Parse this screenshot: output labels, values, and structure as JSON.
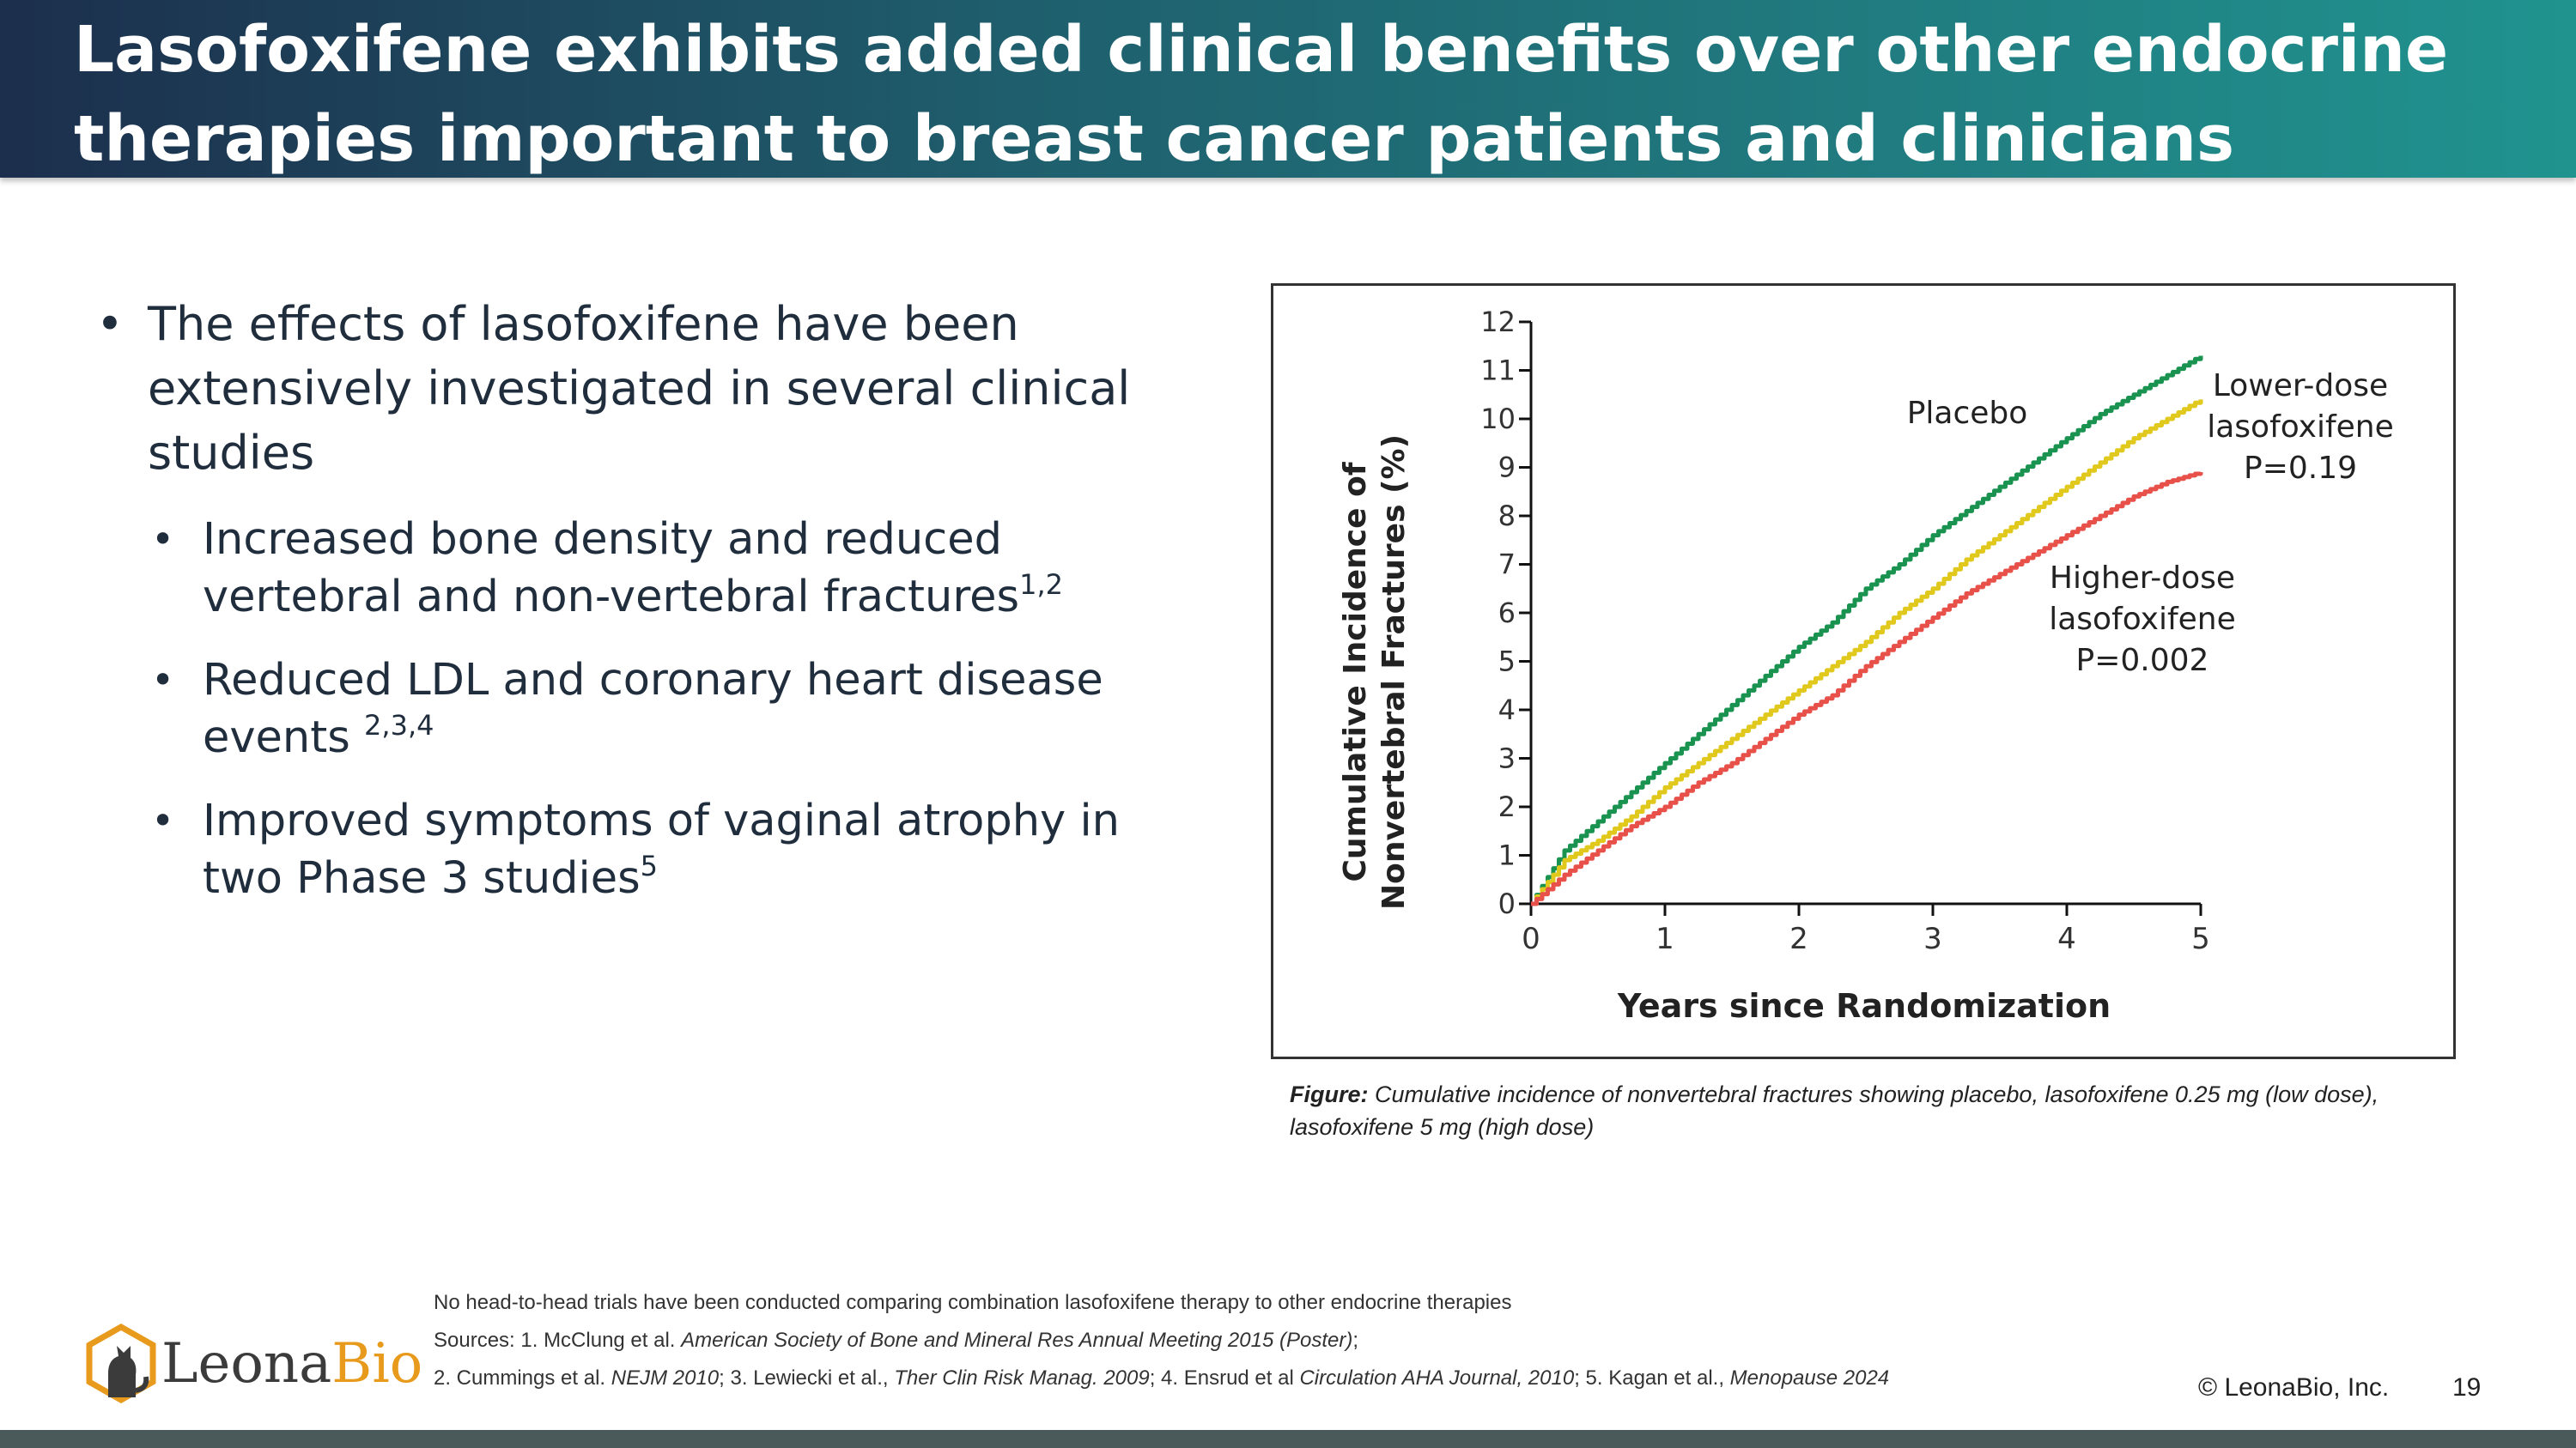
{
  "header": {
    "title": "Lasofoxifene exhibits added clinical benefits over other endocrine therapies important to breast cancer patients and clinicians"
  },
  "bullets": {
    "main": "The effects of lasofoxifene have been extensively investigated in several clinical studies",
    "sub": [
      {
        "text": "Increased bone density and reduced vertebral and non-vertebral fractures",
        "refs": "1,2"
      },
      {
        "text": "Reduced LDL and coronary heart disease events ",
        "refs": "2,3,4"
      },
      {
        "text": "Improved symptoms of vaginal atrophy in two Phase 3 studies",
        "refs": "5"
      }
    ]
  },
  "chart_data": {
    "type": "line",
    "title": "",
    "xlabel": "Years since Randomization",
    "ylabel_line1": "Cumulative Incidence of",
    "ylabel_line2": "Nonvertebral Fractures (%)",
    "xlim": [
      0,
      5
    ],
    "ylim": [
      0,
      12
    ],
    "xticks": [
      0,
      1,
      2,
      3,
      4,
      5
    ],
    "yticks": [
      0,
      1,
      2,
      3,
      4,
      5,
      6,
      7,
      8,
      9,
      10,
      11,
      12
    ],
    "x": [
      0,
      0.25,
      0.5,
      0.75,
      1,
      1.25,
      1.5,
      1.75,
      2,
      2.25,
      2.5,
      2.75,
      3,
      3.25,
      3.5,
      3.75,
      4,
      4.25,
      4.5,
      4.75,
      5
    ],
    "series": [
      {
        "name": "Placebo",
        "color": "#1a9350",
        "values": [
          0,
          1.1,
          1.7,
          2.3,
          2.9,
          3.5,
          4.1,
          4.7,
          5.3,
          5.8,
          6.5,
          7.0,
          7.6,
          8.1,
          8.6,
          9.1,
          9.6,
          10.1,
          10.5,
          10.9,
          11.3
        ]
      },
      {
        "name": "Lower-dose lasofoxifene",
        "color": "#e0c81c",
        "values": [
          0,
          0.9,
          1.3,
          1.8,
          2.4,
          2.9,
          3.4,
          3.9,
          4.4,
          4.9,
          5.4,
          6.0,
          6.5,
          7.1,
          7.6,
          8.1,
          8.6,
          9.1,
          9.6,
          10.0,
          10.4
        ]
      },
      {
        "name": "Higher-dose lasofoxifene",
        "color": "#e8514a",
        "values": [
          0,
          0.6,
          1.1,
          1.6,
          2.0,
          2.5,
          2.9,
          3.4,
          3.9,
          4.3,
          4.9,
          5.4,
          5.9,
          6.4,
          6.8,
          7.2,
          7.6,
          8.0,
          8.4,
          8.7,
          8.9
        ]
      }
    ],
    "annotations": {
      "placebo": "Placebo",
      "low_line1": "Lower-dose",
      "low_line2": "lasofoxifene",
      "low_p": "P=0.19",
      "high_line1": "Higher-dose",
      "high_line2": "lasofoxifene",
      "high_p": "P=0.002"
    }
  },
  "caption": {
    "label": "Figure:",
    "text": "Cumulative incidence of nonvertebral fractures showing placebo, lasofoxifene 0.25 mg (low dose), lasofoxifene 5 mg (high dose)"
  },
  "footnotes": {
    "line1": "No head-to-head trials have been conducted comparing combination lasofoxifene therapy to other endocrine therapies",
    "line2_prefix": "Sources: 1. McClung et al. ",
    "line2_italic": "American Society of Bone and Mineral Res Annual Meeting 2015 (Poster)",
    "line2_suffix": ";",
    "line3_a": "2. Cummings et al. ",
    "line3_b": "NEJM 2010",
    "line3_c": "; 3. Lewiecki et al., ",
    "line3_d": "Ther Clin Risk Manag. 2009",
    "line3_e": "; 4. Ensrud et al ",
    "line3_f": "Circulation AHA Journal, 2010",
    "line3_g": "; 5. Kagan et al., ",
    "line3_h": "Menopause 2024"
  },
  "logo": {
    "part1": "Leona",
    "part2": "Bio",
    "accent": "#e89a1c"
  },
  "footer": {
    "copyright": "© LeonaBio, Inc.",
    "page": "19"
  }
}
